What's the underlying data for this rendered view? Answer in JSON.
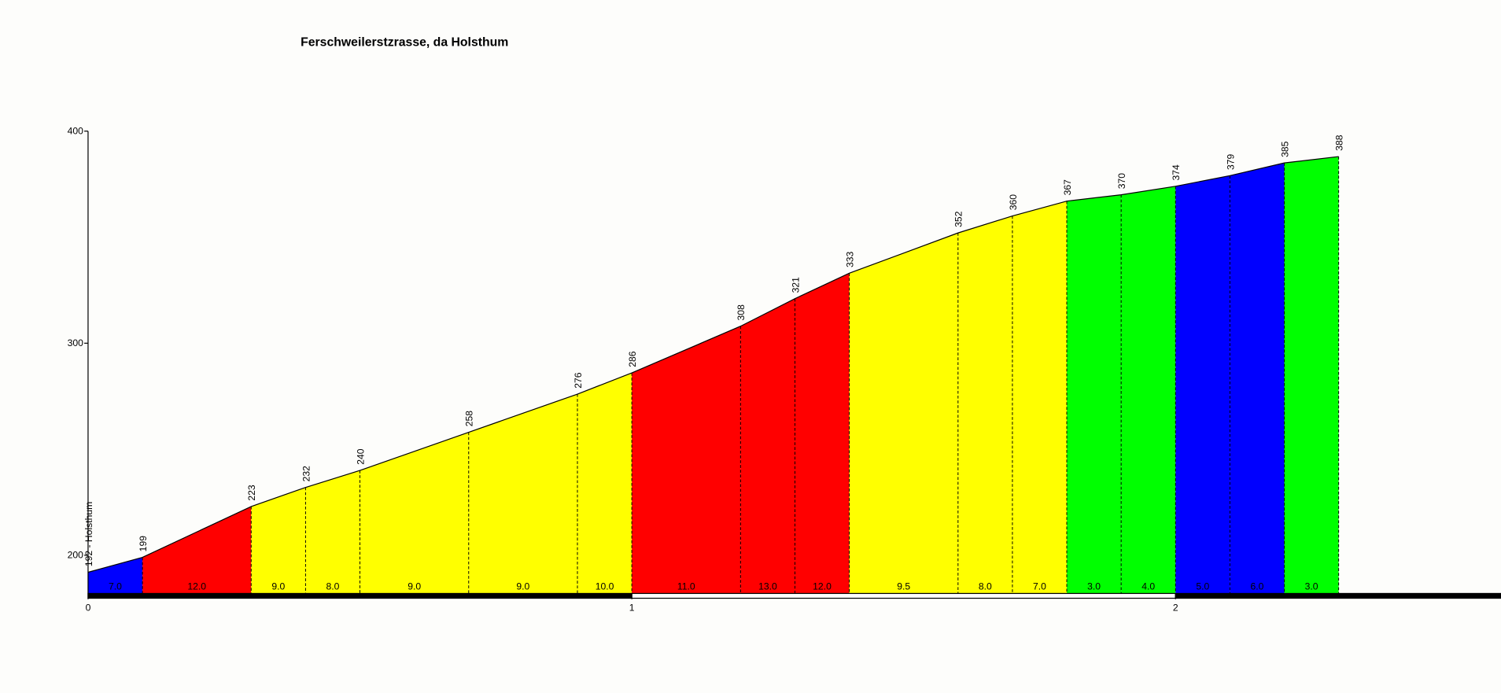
{
  "chart_data": {
    "type": "profile",
    "title": "Ferschweilerstzrasse, da Holsthum",
    "x": [
      0,
      0.1,
      0.3,
      0.4,
      0.5,
      0.7,
      0.9,
      1.0,
      1.2,
      1.3,
      1.4,
      1.6,
      1.7,
      1.8,
      1.9,
      2.0,
      2.1,
      2.2,
      2.3
    ],
    "values": [
      192,
      199,
      223,
      232,
      240,
      258,
      276,
      286,
      308,
      321,
      333,
      352,
      360,
      367,
      370,
      374,
      379,
      385,
      388
    ],
    "value_labels": [
      "192 - Holsthum",
      "199",
      "223",
      "232",
      "240",
      "258",
      "276",
      "286",
      "308",
      "321",
      "333",
      "352",
      "360",
      "367",
      "370",
      "374",
      "379",
      "385",
      "388"
    ],
    "gradients": [
      7,
      12,
      9,
      8,
      9,
      9,
      10,
      11,
      13,
      12,
      9.5,
      8,
      7,
      3,
      4,
      5,
      6,
      3
    ],
    "gradient_labels": [
      "7.0",
      "12.0",
      "9.0",
      "8.0",
      "9.0",
      "9.0",
      "10.0",
      "11.0",
      "13.0",
      "12.0",
      "9.5",
      "8.0",
      "7.0",
      "3.0",
      "4.0",
      "5.0",
      "6.0",
      "3.0"
    ],
    "segment_colors": [
      "#0000ff",
      "#ff0000",
      "#ffff00",
      "#ffff00",
      "#ffff00",
      "#ffff00",
      "#ffff00",
      "#ff0000",
      "#ff0000",
      "#ff0000",
      "#ffff00",
      "#ffff00",
      "#ffff00",
      "#00ff00",
      "#00ff00",
      "#0000ff",
      "#0000ff",
      "#00ff00"
    ],
    "xlim": [
      0,
      2.6
    ],
    "xticks": [
      0,
      1,
      2
    ],
    "ylim": [
      182,
      400
    ],
    "yticks": [
      200,
      300,
      400
    ]
  }
}
